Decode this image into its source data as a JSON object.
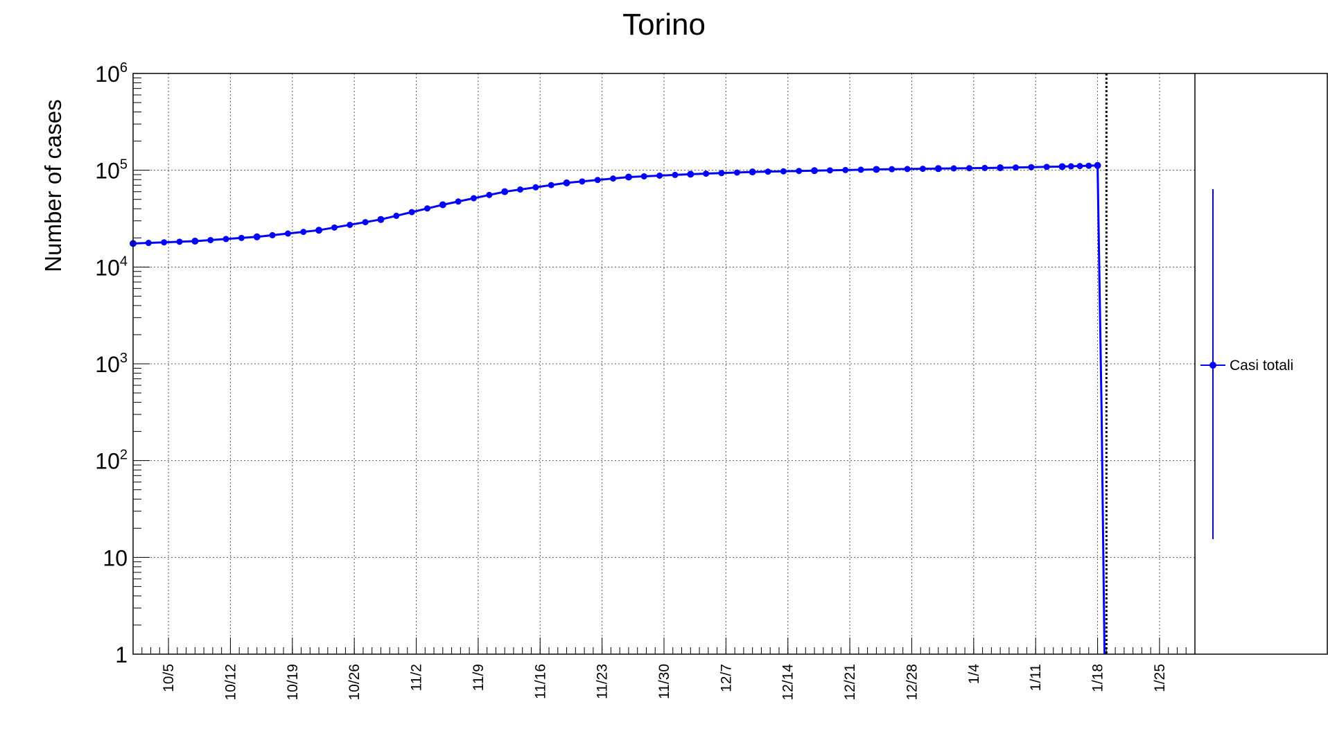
{
  "chart_data": {
    "type": "line",
    "title": "Torino",
    "ylabel": "Number of cases",
    "xlabel": "",
    "yscale": "log",
    "ylim": [
      1,
      1000000
    ],
    "xlim": [
      "2020-10-01",
      "2021-01-29"
    ],
    "grid": true,
    "legend_placement": "right",
    "y_tick_labels": [
      {
        "value": 1,
        "base": "1",
        "exp": ""
      },
      {
        "value": 10,
        "base": "10",
        "exp": ""
      },
      {
        "value": 100,
        "base": "10",
        "exp": "2"
      },
      {
        "value": 1000,
        "base": "10",
        "exp": "3"
      },
      {
        "value": 10000,
        "base": "10",
        "exp": "4"
      },
      {
        "value": 100000,
        "base": "10",
        "exp": "5"
      },
      {
        "value": 1000000,
        "base": "10",
        "exp": "6"
      }
    ],
    "x_tick_labels": [
      {
        "date": "2020-10-05",
        "label": "10/5"
      },
      {
        "date": "2020-10-12",
        "label": "10/12"
      },
      {
        "date": "2020-10-19",
        "label": "10/19"
      },
      {
        "date": "2020-10-26",
        "label": "10/26"
      },
      {
        "date": "2020-11-02",
        "label": "11/2"
      },
      {
        "date": "2020-11-09",
        "label": "11/9"
      },
      {
        "date": "2020-11-16",
        "label": "11/16"
      },
      {
        "date": "2020-11-23",
        "label": "11/23"
      },
      {
        "date": "2020-11-30",
        "label": "11/30"
      },
      {
        "date": "2020-12-07",
        "label": "12/7"
      },
      {
        "date": "2020-12-14",
        "label": "12/14"
      },
      {
        "date": "2020-12-21",
        "label": "12/21"
      },
      {
        "date": "2020-12-28",
        "label": "12/28"
      },
      {
        "date": "2021-01-04",
        "label": "1/4"
      },
      {
        "date": "2021-01-11",
        "label": "1/11"
      },
      {
        "date": "2021-01-18",
        "label": "1/18"
      },
      {
        "date": "2021-01-25",
        "label": "1/25"
      }
    ],
    "vline": {
      "date": "2021-01-19",
      "style": "dotted"
    },
    "series": [
      {
        "name": "Casi totali",
        "color": "#0000ff",
        "marker": "circle",
        "x": [
          "2020-10-01",
          "2020-10-08",
          "2020-10-15",
          "2020-10-22",
          "2020-10-29",
          "2020-11-05",
          "2020-11-12",
          "2020-11-19",
          "2020-11-26",
          "2020-12-03",
          "2020-12-10",
          "2020-12-17",
          "2020-12-24",
          "2020-12-31",
          "2021-01-07",
          "2021-01-14",
          "2021-01-18"
        ],
        "values": [
          17500,
          18500,
          20500,
          24000,
          31000,
          44000,
          60000,
          74000,
          85000,
          91000,
          96000,
          99000,
          102000,
          104000,
          106000,
          109000,
          112000
        ]
      }
    ]
  }
}
